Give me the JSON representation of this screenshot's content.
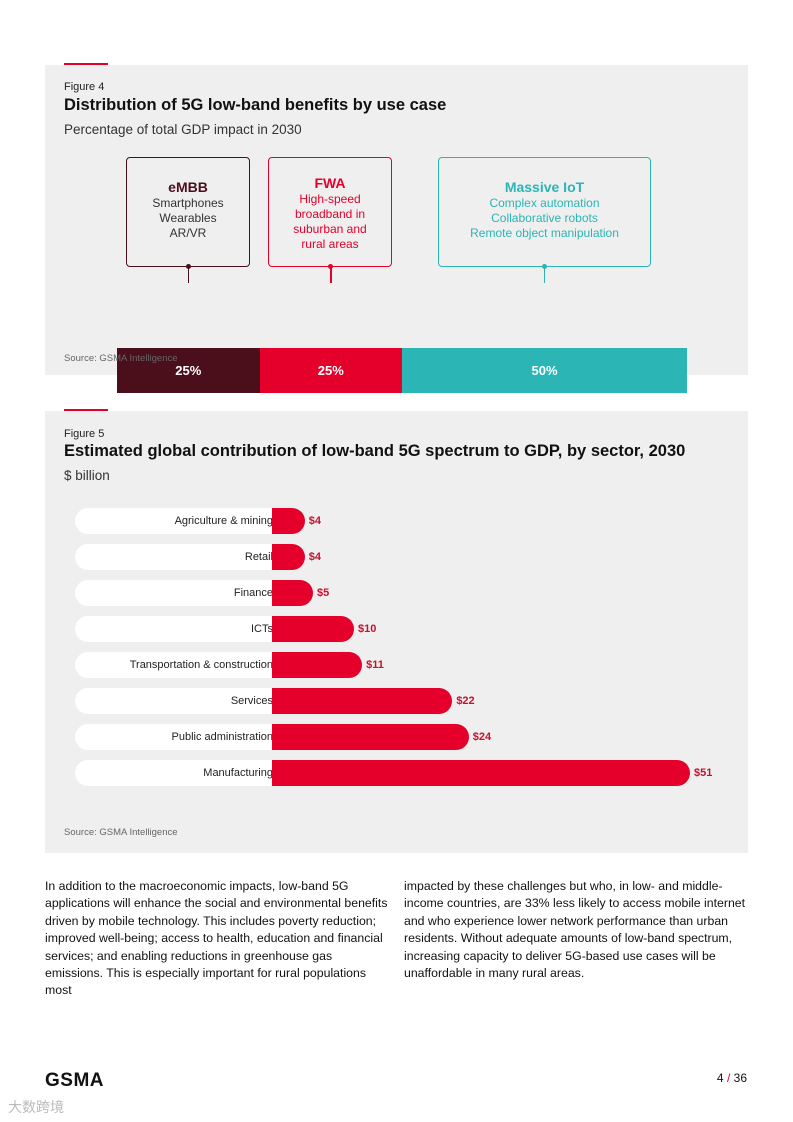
{
  "figure4": {
    "label": "Figure 4",
    "title": "Distribution of 5G low-band benefits by use case",
    "subtitle": "Percentage of total GDP impact in 2030",
    "source": "Source: GSMA Intelligence",
    "segments": [
      {
        "name": "eMBB",
        "lines": [
          "Smartphones",
          "Wearables",
          "AR/VR"
        ],
        "value": "25%",
        "share": 25,
        "color": "#4a0f1b"
      },
      {
        "name": "FWA",
        "lines": [
          "High-speed",
          "broadband in",
          "suburban and",
          "rural areas"
        ],
        "value": "25%",
        "share": 25,
        "color": "#e4002b"
      },
      {
        "name": "Massive IoT",
        "lines": [
          "Complex automation",
          "Collaborative robots",
          "Remote object manipulation"
        ],
        "value": "50%",
        "share": 50,
        "color": "#2bb5b5"
      }
    ]
  },
  "figure5": {
    "label": "Figure 5",
    "title": "Estimated global contribution of low-band 5G spectrum to GDP, by sector, 2030",
    "subtitle": "$ billion",
    "source": "Source: GSMA Intelligence"
  },
  "chart_data": [
    {
      "type": "bar",
      "title": "Distribution of 5G low-band benefits by use case",
      "subtitle": "Percentage of total GDP impact in 2030",
      "categories": [
        "eMBB",
        "FWA",
        "Massive IoT"
      ],
      "values": [
        25,
        25,
        50
      ],
      "unit": "%"
    },
    {
      "type": "bar",
      "orientation": "horizontal",
      "title": "Estimated global contribution of low-band 5G spectrum to GDP, by sector, 2030",
      "subtitle": "$ billion",
      "categories": [
        "Agriculture & mining",
        "Retail",
        "Finance",
        "ICTs",
        "Transportation & construction",
        "Services",
        "Public administration",
        "Manufacturing"
      ],
      "values": [
        4,
        4,
        5,
        10,
        11,
        22,
        24,
        51
      ],
      "labels": [
        "$4",
        "$4",
        "$5",
        "$10",
        "$11",
        "$22",
        "$24",
        "$51"
      ],
      "color": "#e4002b"
    }
  ],
  "body": {
    "col1": "In addition to the macroeconomic impacts, low-band 5G applications will enhance the social and environmental benefits driven by mobile technology. This includes poverty reduction; improved well-being; access to health, education and financial services; and enabling reductions in greenhouse gas emissions. This is especially important for rural populations most",
    "col2": "impacted by these challenges but who, in low- and middle-income countries, are 33% less likely to access mobile internet and who experience lower network performance than urban residents. Without adequate amounts of low-band spectrum, increasing capacity to deliver 5G-based use cases will be unaffordable in many rural areas."
  },
  "footer": {
    "logo": "GSMA",
    "page": "4",
    "total": "36",
    "sep": "/"
  },
  "watermark": "大数跨境"
}
